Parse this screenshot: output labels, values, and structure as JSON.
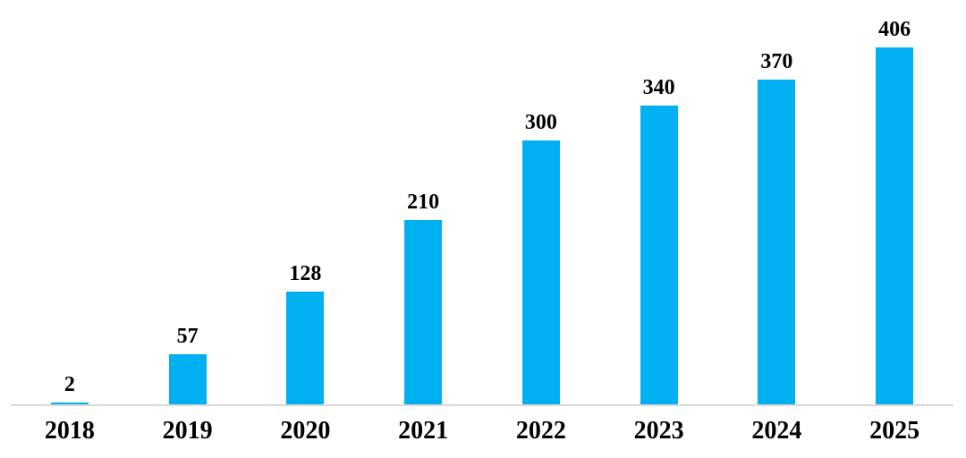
{
  "chart_data": {
    "type": "bar",
    "title": "",
    "xlabel": "",
    "ylabel": "",
    "categories": [
      "2018",
      "2019",
      "2020",
      "2021",
      "2022",
      "2023",
      "2024",
      "2025"
    ],
    "values": [
      2,
      57,
      128,
      210,
      300,
      340,
      370,
      406
    ],
    "data_labels_shown": true,
    "ylim": [
      0,
      460
    ],
    "y_axis_visible": false,
    "grid": false,
    "legend": "none",
    "bar_color": "#00b0f0",
    "axis_line_color": "#d9d9d9",
    "label_color": "#000000"
  }
}
